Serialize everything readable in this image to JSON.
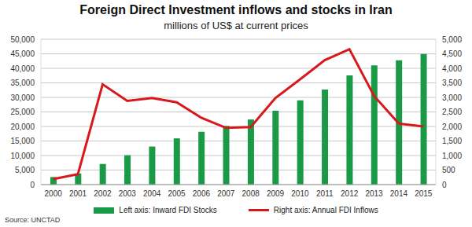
{
  "chart_data": {
    "type": "bar",
    "title": "Foreign Direct Investment inflows and stocks in Iran",
    "subtitle": "millions of US$ at current prices",
    "source": "Source: UNCTAD",
    "categories": [
      "2000",
      "2001",
      "2002",
      "2003",
      "2004",
      "2005",
      "2006",
      "2007",
      "2008",
      "2009",
      "2010",
      "2011",
      "2012",
      "2013",
      "2014",
      "2015"
    ],
    "series": [
      {
        "name": "Left axis: Inward FDI Stocks",
        "type": "bar",
        "color": "#1a9a47",
        "values": [
          2600,
          3800,
          7100,
          10100,
          13100,
          15900,
          18200,
          20200,
          22400,
          25400,
          29000,
          32700,
          37600,
          41000,
          42800,
          44900
        ]
      },
      {
        "name": "Right axis: Annual FDI Inflows",
        "type": "line",
        "axis": "y2",
        "color": "#d7191c",
        "values": [
          190,
          360,
          3450,
          2880,
          2980,
          2830,
          2300,
          1950,
          1980,
          2980,
          3620,
          4280,
          4660,
          3050,
          2100,
          2000
        ]
      }
    ],
    "ylim": [
      0,
      50000
    ],
    "yticks": [
      0,
      {
        "value": 5000,
        "label": "5,000"
      },
      {
        "value": 10000,
        "label": "10,000"
      },
      {
        "value": 15000,
        "label": "15,000"
      },
      {
        "value": 20000,
        "label": "20,000"
      },
      {
        "value": 25000,
        "label": "25,000"
      },
      {
        "value": 30000,
        "label": "30,000"
      },
      {
        "value": 35000,
        "label": "35,000"
      },
      {
        "value": 40000,
        "label": "40,000"
      },
      {
        "value": 45000,
        "label": "45,000"
      },
      {
        "value": 50000,
        "label": "50,000"
      }
    ],
    "y2lim": [
      0,
      5000
    ],
    "y2ticks": [
      0,
      500,
      {
        "value": 1000,
        "label": "1,000"
      },
      {
        "value": 1500,
        "label": "1,500"
      },
      {
        "value": 2000,
        "label": "2,000"
      },
      {
        "value": 2500,
        "label": "2,500"
      },
      {
        "value": 3000,
        "label": "3,000"
      },
      {
        "value": 3500,
        "label": "3,500"
      },
      {
        "value": 4000,
        "label": "4,000"
      },
      {
        "value": 4500,
        "label": "4,500"
      },
      {
        "value": 5000,
        "label": "5,000"
      }
    ],
    "grid": true,
    "legend": "bottom"
  }
}
